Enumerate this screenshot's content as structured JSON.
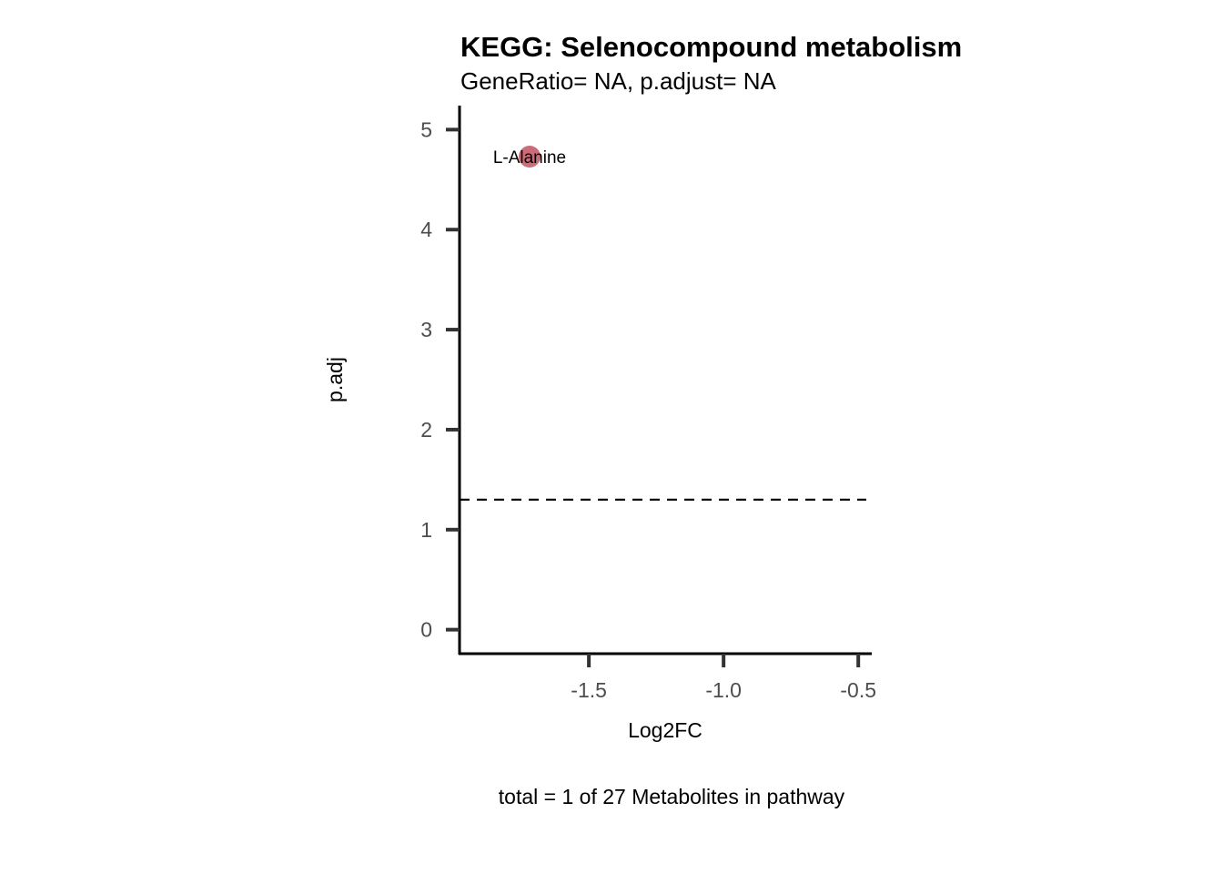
{
  "chart_data": {
    "type": "scatter",
    "title": "KEGG: Selenocompound metabolism",
    "subtitle": "GeneRatio= NA, p.adjust= NA",
    "xlabel": "Log2FC",
    "ylabel": "p.adj",
    "caption": "total = 1 of 27 Metabolites in pathway",
    "xlim": [
      -1.98,
      -0.45
    ],
    "ylim": [
      -0.24,
      5.24
    ],
    "x_ticks": [
      -1.5,
      -1.0,
      -0.5
    ],
    "x_tick_labels": [
      "-1.5",
      "-1.0",
      "-0.5"
    ],
    "y_ticks": [
      0,
      1,
      2,
      3,
      4,
      5
    ],
    "y_tick_labels": [
      "0",
      "1",
      "2",
      "3",
      "4",
      "5"
    ],
    "threshold_line": {
      "y": 1.3,
      "style": "dashed"
    },
    "grid": false,
    "points": [
      {
        "label": "L-Alanine",
        "x": -1.72,
        "y": 4.73,
        "color": "#c65b6c"
      }
    ]
  }
}
